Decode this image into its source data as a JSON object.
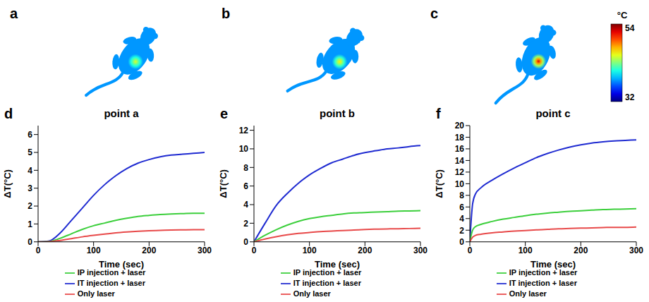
{
  "images": [
    {
      "label": "a",
      "base_temperature": 38,
      "peak_temperature": 45
    },
    {
      "label": "b",
      "base_temperature": 38,
      "peak_temperature": 46
    },
    {
      "label": "c",
      "base_temperature": 38,
      "peak_temperature": 52
    }
  ],
  "color_bar": {
    "title": "°C",
    "range": [
      32,
      54
    ],
    "ticks": [
      32,
      54
    ]
  },
  "chart_data": [
    {
      "label": "d",
      "type": "line",
      "title": "point a",
      "x_label": "Time (sec)",
      "y_label": "ΔT(°C)",
      "x": [
        0,
        20,
        40,
        60,
        80,
        100,
        120,
        140,
        160,
        180,
        200,
        220,
        240,
        260,
        280,
        300
      ],
      "xlim": [
        0,
        300
      ],
      "xticks": [
        0,
        100,
        200,
        300
      ],
      "ylim": [
        0,
        6.5
      ],
      "yticks": [
        0,
        1,
        2,
        3,
        4,
        5,
        6
      ],
      "legend": "bottom",
      "series": [
        {
          "name": "IT injection + laser",
          "color": "#1f2bd1",
          "values": [
            0,
            0.05,
            0.5,
            1.2,
            1.9,
            2.6,
            3.2,
            3.7,
            4.1,
            4.4,
            4.6,
            4.75,
            4.85,
            4.9,
            4.95,
            5.0
          ]
        },
        {
          "name": "IP injection + laser",
          "color": "#3ccf3c",
          "values": [
            0,
            0.02,
            0.2,
            0.45,
            0.7,
            0.9,
            1.05,
            1.2,
            1.32,
            1.42,
            1.48,
            1.53,
            1.56,
            1.58,
            1.6,
            1.6
          ]
        },
        {
          "name": "Only laser",
          "color": "#e84a4a",
          "values": [
            0,
            0.01,
            0.08,
            0.18,
            0.28,
            0.36,
            0.43,
            0.5,
            0.55,
            0.59,
            0.62,
            0.64,
            0.66,
            0.67,
            0.68,
            0.68
          ]
        }
      ]
    },
    {
      "label": "e",
      "type": "line",
      "title": "point b",
      "x_label": "Time (sec)",
      "y_label": "ΔT(°C)",
      "x": [
        0,
        20,
        40,
        60,
        80,
        100,
        120,
        140,
        160,
        180,
        200,
        220,
        240,
        260,
        280,
        300
      ],
      "xlim": [
        0,
        300
      ],
      "xticks": [
        0,
        100,
        200,
        300
      ],
      "ylim": [
        0,
        12.5
      ],
      "yticks": [
        0,
        2,
        4,
        6,
        8,
        10,
        12
      ],
      "legend": "bottom",
      "series": [
        {
          "name": "IT injection + laser",
          "color": "#1f2bd1",
          "values": [
            0,
            2.0,
            3.9,
            5.2,
            6.3,
            7.2,
            7.9,
            8.5,
            8.9,
            9.3,
            9.6,
            9.8,
            10.0,
            10.1,
            10.25,
            10.35
          ]
        },
        {
          "name": "IP injection + laser",
          "color": "#3ccf3c",
          "values": [
            0,
            0.7,
            1.3,
            1.8,
            2.2,
            2.5,
            2.7,
            2.85,
            3.0,
            3.1,
            3.15,
            3.2,
            3.25,
            3.3,
            3.32,
            3.35
          ]
        },
        {
          "name": "Only laser",
          "color": "#e84a4a",
          "values": [
            0,
            0.3,
            0.55,
            0.75,
            0.9,
            1.0,
            1.1,
            1.15,
            1.22,
            1.27,
            1.32,
            1.36,
            1.39,
            1.41,
            1.43,
            1.45
          ]
        }
      ]
    },
    {
      "label": "f",
      "type": "line",
      "title": "point c",
      "x_label": "Time (sec)",
      "y_label": "ΔT(°C)",
      "x": [
        0,
        5,
        10,
        20,
        40,
        60,
        80,
        100,
        120,
        140,
        160,
        180,
        200,
        220,
        240,
        260,
        280,
        300
      ],
      "xlim": [
        0,
        300
      ],
      "xticks": [
        0,
        100,
        200,
        300
      ],
      "ylim": [
        0,
        20
      ],
      "yticks": [
        0,
        2,
        4,
        6,
        8,
        10,
        12,
        14,
        16,
        18,
        20
      ],
      "legend": "bottom",
      "series": [
        {
          "name": "IT injection + laser",
          "color": "#1f2bd1",
          "values": [
            0,
            6.5,
            8.2,
            9.3,
            10.6,
            11.7,
            12.7,
            13.6,
            14.5,
            15.2,
            15.8,
            16.3,
            16.7,
            17.0,
            17.2,
            17.35,
            17.45,
            17.55
          ]
        },
        {
          "name": "IP injection + laser",
          "color": "#3ccf3c",
          "values": [
            0,
            2.0,
            2.6,
            3.0,
            3.5,
            3.9,
            4.2,
            4.5,
            4.75,
            4.95,
            5.1,
            5.25,
            5.35,
            5.45,
            5.55,
            5.6,
            5.65,
            5.7
          ]
        },
        {
          "name": "Only laser",
          "color": "#e84a4a",
          "values": [
            0,
            0.8,
            1.1,
            1.3,
            1.55,
            1.7,
            1.85,
            1.95,
            2.05,
            2.15,
            2.25,
            2.3,
            2.35,
            2.4,
            2.45,
            2.5,
            2.5,
            2.55
          ]
        }
      ]
    }
  ]
}
